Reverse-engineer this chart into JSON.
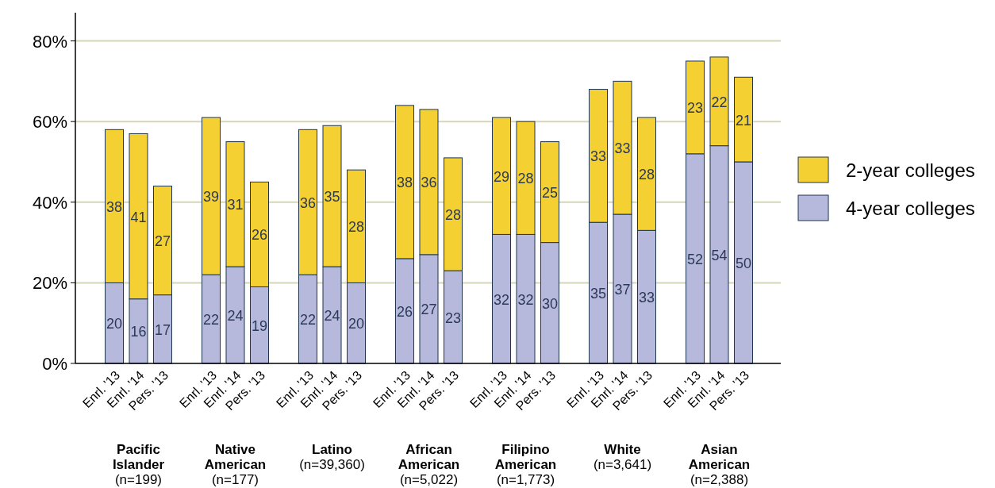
{
  "chart_data": {
    "type": "bar",
    "stacked": true,
    "data_labels": true,
    "grid": "y",
    "legend": "right",
    "categories": [
      "Enrl. '13",
      "Enrl. '14",
      "Pers. '13",
      null,
      "Enrl. '13",
      "Enrl. '14",
      "Pers. '13",
      null,
      "Enrl. '13",
      "Enrl. '14",
      "Pers. '13",
      null,
      "Enrl. '13",
      "Enrl. '14",
      "Pers. '13",
      null,
      "Enrl. '13",
      "Enrl. '14",
      "Pers. '13",
      null,
      "Enrl. '13",
      "Enrl. '14",
      "Pers. '13",
      null,
      "Enrl. '13",
      "Enrl. '14",
      "Pers. '13"
    ],
    "series": [
      {
        "name": "4-year colleges",
        "color": "#b6b8dc",
        "values": [
          20,
          16,
          17,
          null,
          22,
          24,
          19,
          null,
          22,
          24,
          20,
          null,
          26,
          27,
          23,
          null,
          32,
          32,
          30,
          null,
          35,
          37,
          33,
          null,
          52,
          54,
          50
        ]
      },
      {
        "name": "2-year colleges",
        "color": "#f5d033",
        "values": [
          38,
          41,
          27,
          null,
          39,
          31,
          26,
          null,
          36,
          35,
          28,
          null,
          38,
          36,
          28,
          null,
          29,
          28,
          25,
          null,
          33,
          33,
          28,
          null,
          23,
          22,
          21
        ]
      }
    ],
    "ylim": [
      0,
      87
    ],
    "yticks": [
      {
        "value": 0,
        "label": "0%"
      },
      {
        "value": 20,
        "label": "20%"
      },
      {
        "value": 40,
        "label": "40%"
      },
      {
        "value": 60,
        "label": "60%"
      },
      {
        "value": 80,
        "label": "80%"
      }
    ],
    "annotations": [
      "Pacific\nIslander\n(n=199)",
      "Native\nAmerican\n(n=177)",
      "Latino\n(n=39,360)",
      "African\nAmerican\n(n=5,022)",
      "Filipino\nAmerican\n(n=1,773)",
      "White\n(n=3,641)",
      "Asian\nAmerican\n(n=2,388)"
    ]
  }
}
